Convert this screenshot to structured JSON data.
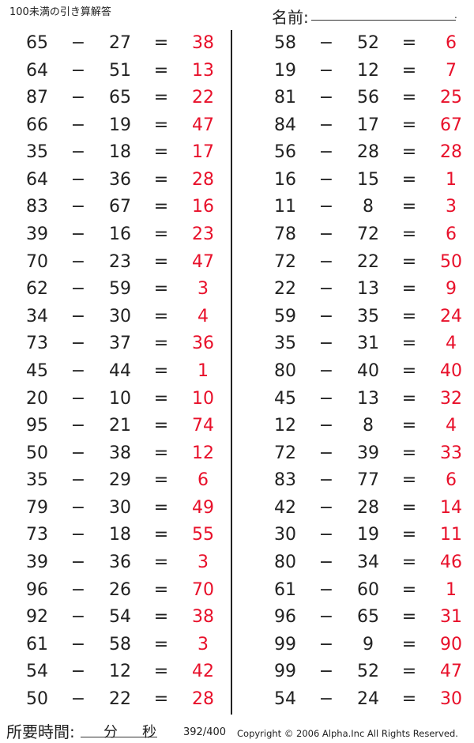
{
  "header": {
    "title": "100未満の引き算解答",
    "name_label": "名前:",
    "name_end": "."
  },
  "operator": "−",
  "equals": "=",
  "colors": {
    "answer": "#e8102a",
    "text": "#222222"
  },
  "left_column": [
    [
      65,
      27,
      38
    ],
    [
      64,
      51,
      13
    ],
    [
      87,
      65,
      22
    ],
    [
      66,
      19,
      47
    ],
    [
      35,
      18,
      17
    ],
    [
      64,
      36,
      28
    ],
    [
      83,
      67,
      16
    ],
    [
      39,
      16,
      23
    ],
    [
      70,
      23,
      47
    ],
    [
      62,
      59,
      3
    ],
    [
      34,
      30,
      4
    ],
    [
      73,
      37,
      36
    ],
    [
      45,
      44,
      1
    ],
    [
      20,
      10,
      10
    ],
    [
      95,
      21,
      74
    ],
    [
      50,
      38,
      12
    ],
    [
      35,
      29,
      6
    ],
    [
      79,
      30,
      49
    ],
    [
      73,
      18,
      55
    ],
    [
      39,
      36,
      3
    ],
    [
      96,
      26,
      70
    ],
    [
      92,
      54,
      38
    ],
    [
      61,
      58,
      3
    ],
    [
      54,
      12,
      42
    ],
    [
      50,
      22,
      28
    ]
  ],
  "right_column": [
    [
      58,
      52,
      6
    ],
    [
      19,
      12,
      7
    ],
    [
      81,
      56,
      25
    ],
    [
      84,
      17,
      67
    ],
    [
      56,
      28,
      28
    ],
    [
      16,
      15,
      1
    ],
    [
      11,
      8,
      3
    ],
    [
      78,
      72,
      6
    ],
    [
      72,
      22,
      50
    ],
    [
      22,
      13,
      9
    ],
    [
      59,
      35,
      24
    ],
    [
      35,
      31,
      4
    ],
    [
      80,
      40,
      40
    ],
    [
      45,
      13,
      32
    ],
    [
      12,
      8,
      4
    ],
    [
      72,
      39,
      33
    ],
    [
      83,
      77,
      6
    ],
    [
      42,
      28,
      14
    ],
    [
      30,
      19,
      11
    ],
    [
      80,
      34,
      46
    ],
    [
      61,
      60,
      1
    ],
    [
      96,
      65,
      31
    ],
    [
      99,
      9,
      90
    ],
    [
      99,
      52,
      47
    ],
    [
      54,
      24,
      30
    ]
  ],
  "footer": {
    "time_label": "所要時間:",
    "minutes": "分",
    "seconds": "秒",
    "page": "392/400",
    "copyright": "Copyright © 2006 Alpha.Inc All Rights Reserved."
  }
}
